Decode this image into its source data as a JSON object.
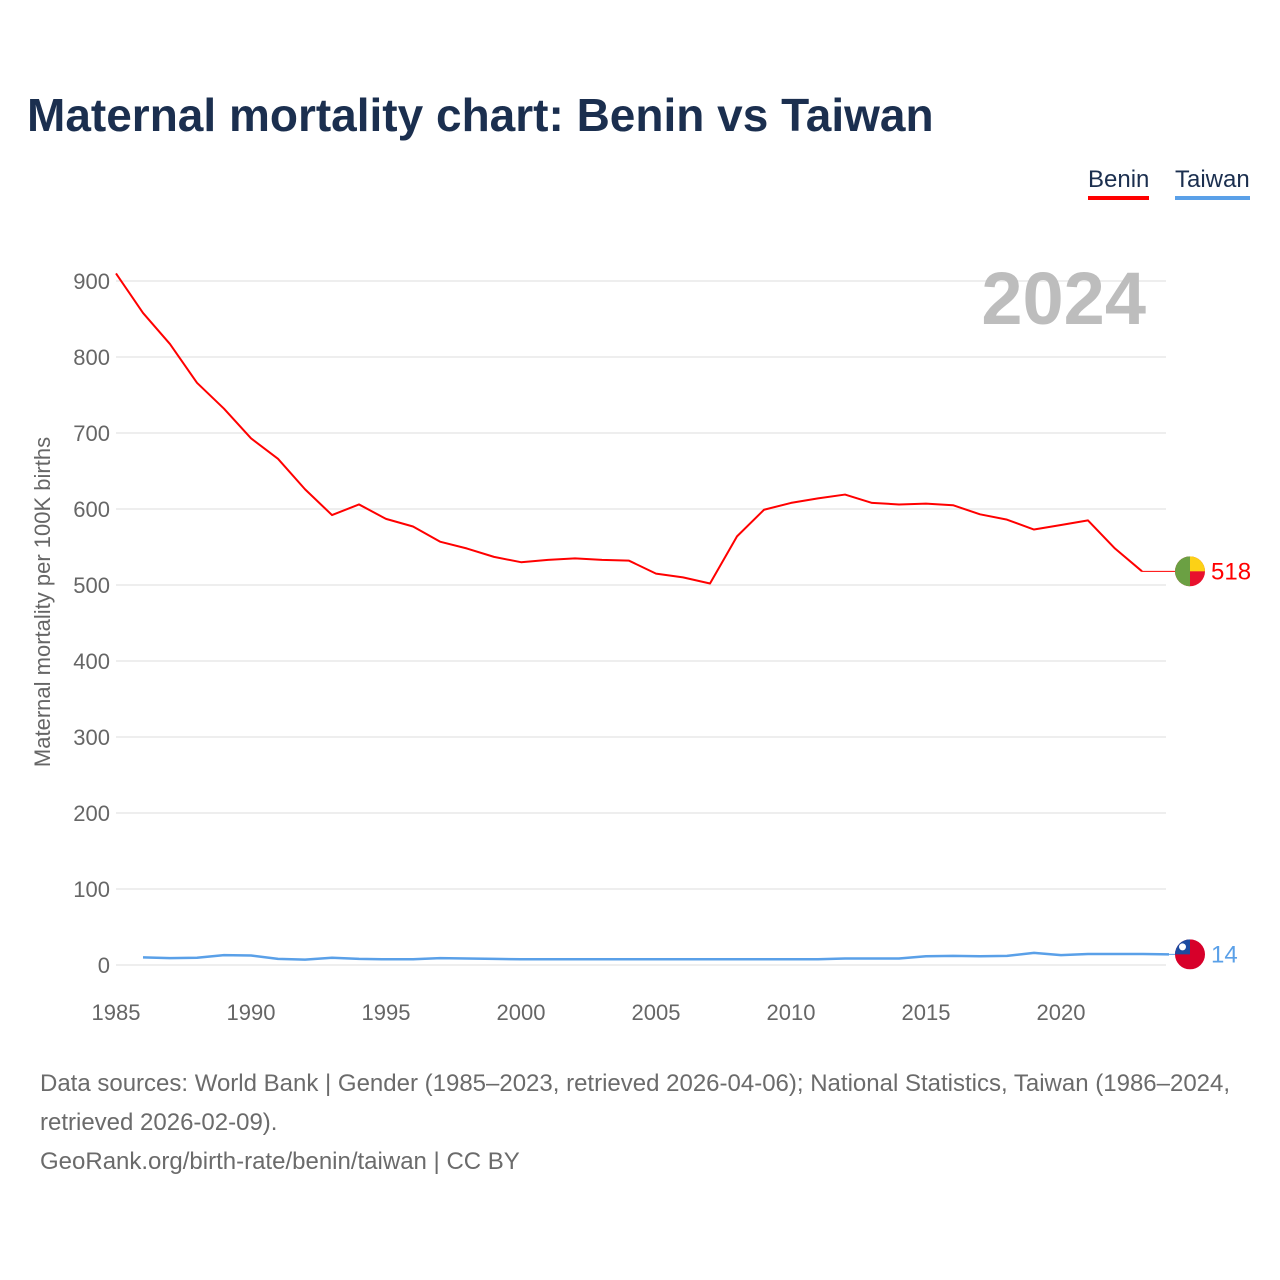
{
  "title": "Maternal mortality chart: Benin vs Taiwan",
  "year_label": "2024",
  "footer": {
    "sources": "Data sources: World Bank | Gender (1985–2023, retrieved 2026-04-06); National Statistics, Taiwan (1986–2024, retrieved 2026-02-09).",
    "credit": "GeoRank.org/birth-rate/benin/taiwan | CC BY"
  },
  "chart_data": {
    "type": "line",
    "title": "Maternal mortality chart: Benin vs Taiwan",
    "xlabel": "",
    "ylabel": "Maternal mortality per 100K births",
    "xlim": [
      1985,
      2024
    ],
    "ylim": [
      0,
      900
    ],
    "x_ticks": [
      1985,
      1990,
      1995,
      2000,
      2005,
      2010,
      2015,
      2020
    ],
    "y_ticks": [
      0,
      100,
      200,
      300,
      400,
      500,
      600,
      700,
      800,
      900
    ],
    "grid": true,
    "legend_position": "top-right",
    "series": [
      {
        "name": "Benin",
        "color": "#ff0000",
        "end_label": "518",
        "flag": "benin-flag",
        "x": [
          1985,
          1986,
          1987,
          1988,
          1989,
          1990,
          1991,
          1992,
          1993,
          1994,
          1995,
          1996,
          1997,
          1998,
          1999,
          2000,
          2001,
          2002,
          2003,
          2004,
          2005,
          2006,
          2007,
          2008,
          2009,
          2010,
          2011,
          2012,
          2013,
          2014,
          2015,
          2016,
          2017,
          2018,
          2019,
          2020,
          2021,
          2022,
          2023
        ],
        "values": [
          910,
          858,
          817,
          766,
          732,
          693,
          666,
          626,
          592,
          606,
          587,
          577,
          557,
          548,
          537,
          530,
          533,
          535,
          533,
          532,
          515,
          510,
          502,
          564,
          599,
          608,
          614,
          619,
          608,
          606,
          607,
          605,
          593,
          586,
          573,
          579,
          585,
          548,
          518
        ]
      },
      {
        "name": "Taiwan",
        "color": "#5aa0e8",
        "end_label": "14",
        "flag": "taiwan-flag",
        "x": [
          1986,
          1987,
          1988,
          1989,
          1990,
          1991,
          1992,
          1993,
          1994,
          1995,
          1996,
          1997,
          1998,
          1999,
          2000,
          2001,
          2002,
          2003,
          2004,
          2005,
          2006,
          2007,
          2008,
          2009,
          2010,
          2011,
          2012,
          2013,
          2014,
          2015,
          2016,
          2017,
          2018,
          2019,
          2020,
          2021,
          2022,
          2023,
          2024
        ],
        "values": [
          10,
          9,
          9.5,
          13,
          12.5,
          8,
          7,
          9.5,
          8,
          7.5,
          7.5,
          9,
          8.5,
          8,
          7.5,
          7.5,
          7.5,
          7.5,
          7.5,
          7.5,
          7.5,
          7.5,
          7.5,
          7.5,
          7.5,
          7.5,
          8.5,
          8.5,
          8.5,
          11.5,
          12,
          11.5,
          12,
          16,
          13,
          14.5,
          14.5,
          14.5,
          14
        ]
      }
    ]
  }
}
